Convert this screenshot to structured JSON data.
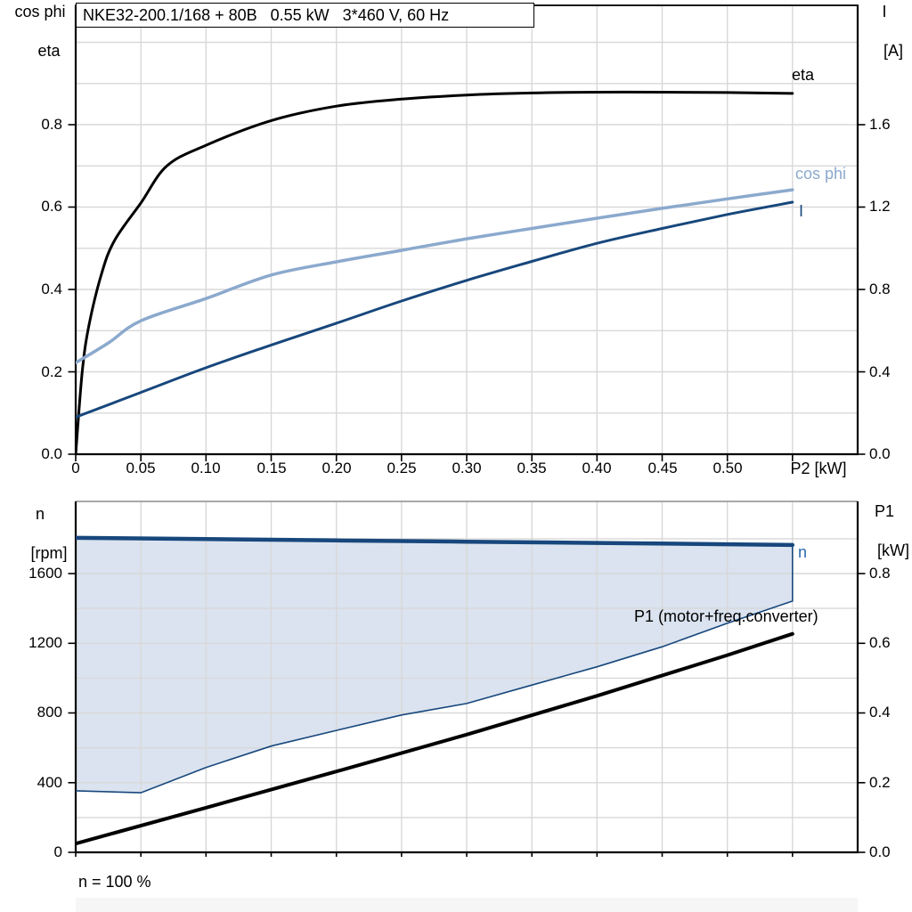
{
  "header": {
    "title_box": "NKE32-200.1/168 + 80B   0.55 kW   3*460 V, 60 Hz"
  },
  "colors": {
    "eta_curve": "#000000",
    "cos_phi_curve": "#8BA9CD",
    "current_curve": "#17477C",
    "n_curve": "#17477C",
    "n_label": "#2A6AB0",
    "area_fill": "#DAE3EF",
    "p1_curve": "#000000",
    "grid": "#D8D8D8",
    "frame": "#000000",
    "frame_top": "#8C8C8C"
  },
  "top_chart": {
    "y_left_title_line1": "cos phi",
    "y_left_title_line2": "eta",
    "y_right_title_line1": "I",
    "y_right_title_line2": "[A]",
    "x_axis_label": "P2 [kW]",
    "y_left_ticks": [
      "0.0",
      "0.2",
      "0.4",
      "0.6",
      "0.8"
    ],
    "y_right_ticks": [
      "0.0",
      "0.4",
      "0.8",
      "1.2",
      "1.6"
    ],
    "x_ticks": [
      "0",
      "0.05",
      "0.10",
      "0.15",
      "0.20",
      "0.25",
      "0.30",
      "0.35",
      "0.40",
      "0.45",
      "0.50"
    ],
    "labels": {
      "eta": "eta",
      "cos_phi": "cos phi",
      "current": "I"
    }
  },
  "bottom_chart": {
    "y_left_title_line1": "n",
    "y_left_title_line2": "[rpm]",
    "y_right_title_line1": "P1",
    "y_right_title_line2": "[kW]",
    "y_left_ticks": [
      "0",
      "400",
      "800",
      "1200",
      "1600"
    ],
    "y_right_ticks": [
      "0.0",
      "0.2",
      "0.4",
      "0.6",
      "0.8"
    ],
    "labels": {
      "n": "n",
      "p1": "P1 (motor+freq.converter)"
    },
    "footnote": "n = 100 %"
  },
  "chart_data": [
    {
      "type": "line",
      "title": "NKE32-200.1/168 + 80B  0.55 kW  3*460 V, 60 Hz",
      "xlabel": "P2 [kW]",
      "x_range": [
        0,
        0.6
      ],
      "x_major_ticks": [
        0,
        0.05,
        0.1,
        0.15,
        0.2,
        0.25,
        0.3,
        0.35,
        0.4,
        0.45,
        0.5
      ],
      "grid": true,
      "y_left": {
        "label": "cos phi / eta",
        "range": [
          0,
          1.09
        ],
        "ticks": [
          0,
          0.2,
          0.4,
          0.6,
          0.8
        ],
        "minor_step": 0.1
      },
      "y_right": {
        "label": "I [A]",
        "range": [
          0,
          2.18
        ],
        "ticks": [
          0,
          0.4,
          0.8,
          1.2,
          1.6
        ]
      },
      "series": [
        {
          "name": "eta",
          "axis": "left",
          "color": "#000000",
          "width": 3,
          "smooth": true,
          "x": [
            0,
            0.005,
            0.01,
            0.02,
            0.03,
            0.05,
            0.07,
            0.1,
            0.15,
            0.2,
            0.25,
            0.3,
            0.35,
            0.4,
            0.45,
            0.5,
            0.55
          ],
          "y": [
            0,
            0.2,
            0.31,
            0.44,
            0.52,
            0.61,
            0.7,
            0.75,
            0.81,
            0.845,
            0.862,
            0.872,
            0.877,
            0.879,
            0.879,
            0.878,
            0.876
          ]
        },
        {
          "name": "cos phi",
          "axis": "left",
          "color": "#8BA9CD",
          "width": 3.5,
          "smooth": true,
          "x": [
            0,
            0.025,
            0.05,
            0.1,
            0.15,
            0.2,
            0.25,
            0.3,
            0.35,
            0.4,
            0.45,
            0.5,
            0.55
          ],
          "y": [
            0.222,
            0.27,
            0.324,
            0.378,
            0.435,
            0.467,
            0.495,
            0.523,
            0.548,
            0.573,
            0.597,
            0.62,
            0.642
          ]
        },
        {
          "name": "I",
          "axis": "left",
          "right_axis_amps_factor": 2,
          "color": "#17477C",
          "width": 3,
          "smooth": true,
          "x": [
            0,
            0.05,
            0.1,
            0.15,
            0.2,
            0.25,
            0.3,
            0.35,
            0.4,
            0.45,
            0.5,
            0.55
          ],
          "y": [
            0.09,
            0.15,
            0.21,
            0.265,
            0.318,
            0.372,
            0.422,
            0.468,
            0.512,
            0.548,
            0.582,
            0.612
          ]
        }
      ]
    },
    {
      "type": "line+area",
      "xlabel": "",
      "x_range": [
        0,
        0.6
      ],
      "grid": true,
      "y_left": {
        "label": "n [rpm]",
        "range": [
          0,
          2015
        ],
        "ticks": [
          0,
          400,
          800,
          1200,
          1600
        ],
        "minor_step": 200
      },
      "y_right": {
        "label": "P1 [kW]",
        "range": [
          0,
          1.0075
        ],
        "ticks": [
          0,
          0.2,
          0.4,
          0.6,
          0.8
        ]
      },
      "footnote": "n = 100 %",
      "area": {
        "name": "speed-control-range",
        "fill": "#DAE3EF",
        "upper_x": [
          0,
          0.1,
          0.2,
          0.3,
          0.4,
          0.5,
          0.55
        ],
        "upper_y": [
          1805,
          1798,
          1790,
          1783,
          1776,
          1768,
          1764
        ],
        "lower_x": [
          0,
          0.05,
          0.1,
          0.15,
          0.2,
          0.25,
          0.3,
          0.35,
          0.4,
          0.45,
          0.5,
          0.55
        ],
        "lower_y": [
          353,
          342,
          487,
          610,
          700,
          788,
          854,
          960,
          1065,
          1180,
          1315,
          1442
        ]
      },
      "series": [
        {
          "name": "n",
          "axis": "left",
          "color": "#17477C",
          "width": 4.5,
          "smooth": false,
          "x": [
            0,
            0.1,
            0.2,
            0.3,
            0.4,
            0.5,
            0.55
          ],
          "y": [
            1805,
            1798,
            1790,
            1783,
            1776,
            1768,
            1764
          ]
        },
        {
          "name": "n lower boundary",
          "axis": "left",
          "color": "#17477C",
          "width": 1.6,
          "smooth": false,
          "close_right_to_n": true,
          "x": [
            0,
            0.05,
            0.1,
            0.15,
            0.2,
            0.25,
            0.3,
            0.35,
            0.4,
            0.45,
            0.5,
            0.55
          ],
          "y": [
            353,
            342,
            487,
            610,
            700,
            788,
            854,
            960,
            1065,
            1180,
            1315,
            1442
          ]
        },
        {
          "name": "P1 (motor+freq.converter)",
          "axis": "right",
          "color": "#000000",
          "width": 4,
          "smooth": false,
          "x": [
            0,
            0.1,
            0.2,
            0.3,
            0.4,
            0.5,
            0.55
          ],
          "y": [
            0.025,
            0.128,
            0.232,
            0.338,
            0.449,
            0.566,
            0.627
          ]
        }
      ]
    }
  ]
}
